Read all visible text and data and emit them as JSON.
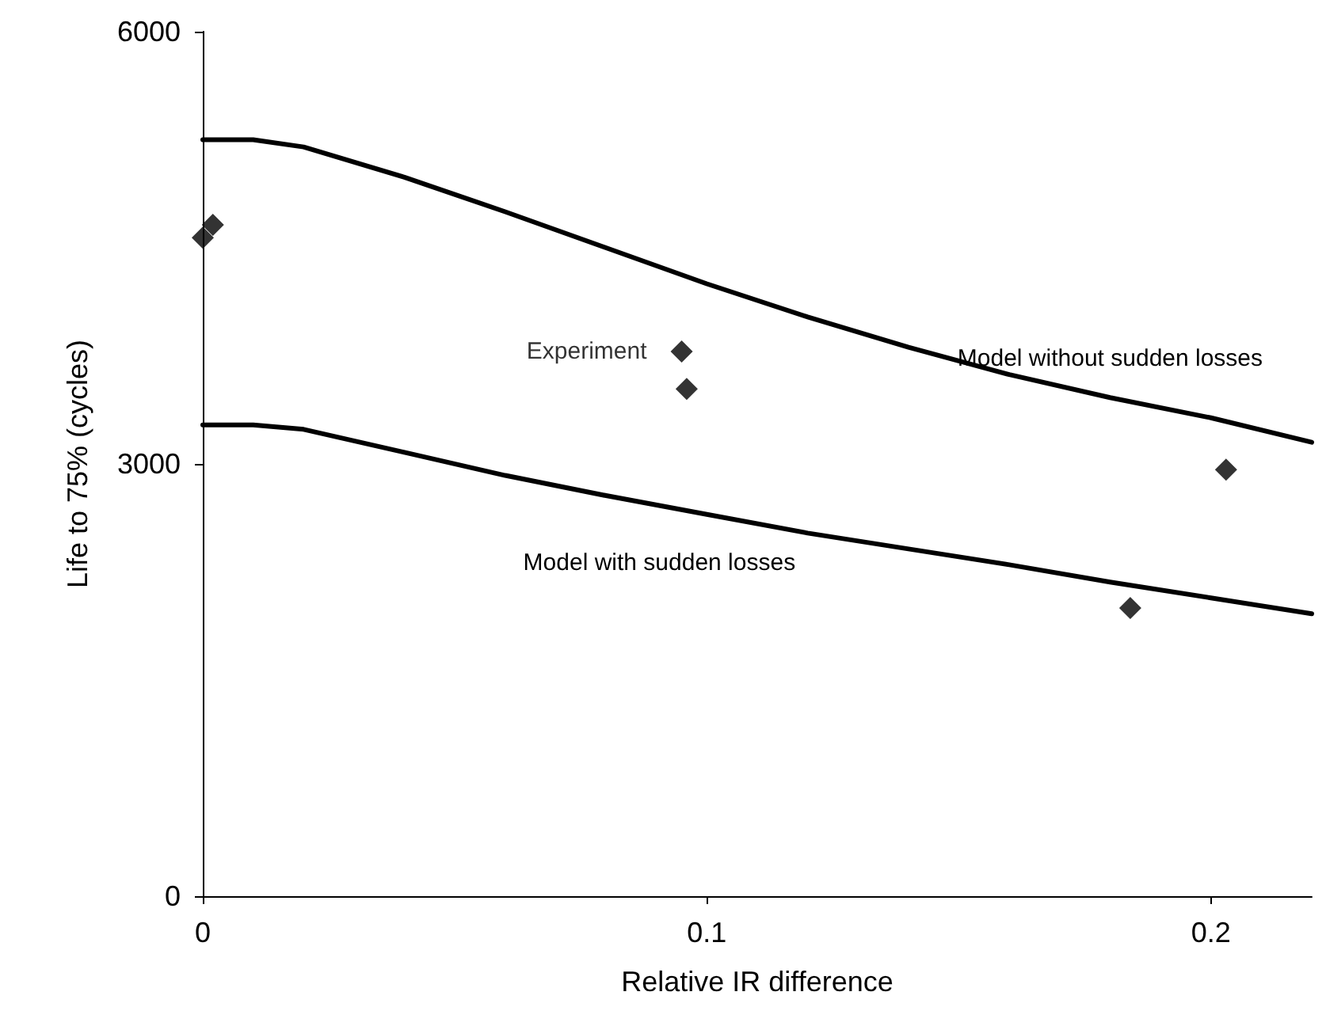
{
  "chart_data": {
    "type": "line",
    "xlabel": "Relative IR difference",
    "ylabel": "Life to 75% (cycles)",
    "xlim": [
      0,
      0.22
    ],
    "xticks": [
      0,
      0.1,
      0.2
    ],
    "ylim": [
      0,
      6000
    ],
    "yticks": [
      0,
      3000,
      6000
    ],
    "grid": false,
    "legend": false,
    "series": [
      {
        "name": "Model without sudden losses",
        "color": "#000000",
        "marker": "none",
        "x": [
          0,
          0.01,
          0.02,
          0.04,
          0.06,
          0.08,
          0.1,
          0.12,
          0.14,
          0.16,
          0.18,
          0.2,
          0.22
        ],
        "values": [
          5250,
          5250,
          5200,
          4990,
          4750,
          4500,
          4250,
          4020,
          3810,
          3620,
          3460,
          3320,
          3150
        ]
      },
      {
        "name": "Model with sudden losses",
        "color": "#000000",
        "marker": "none",
        "x": [
          0,
          0.01,
          0.02,
          0.04,
          0.06,
          0.08,
          0.1,
          0.12,
          0.14,
          0.16,
          0.18,
          0.2,
          0.22
        ],
        "values": [
          3270,
          3270,
          3240,
          3080,
          2920,
          2780,
          2650,
          2520,
          2410,
          2300,
          2180,
          2070,
          1960
        ]
      },
      {
        "name": "Experiment",
        "type": "scatter",
        "color": "#000000",
        "marker": "diamond",
        "x": [
          0,
          0.002,
          0.095,
          0.096,
          0.184,
          0.203
        ],
        "values": [
          4570,
          4660,
          3780,
          3520,
          2000,
          2960
        ]
      }
    ]
  }
}
